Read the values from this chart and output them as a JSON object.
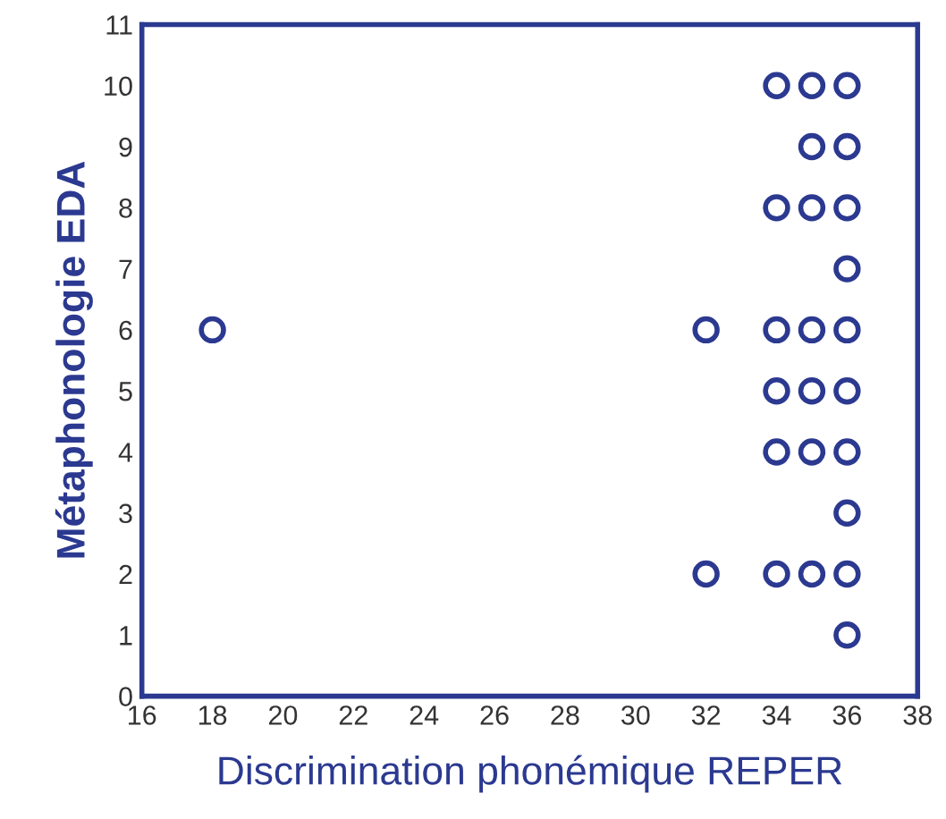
{
  "chart_data": {
    "type": "scatter",
    "xlabel": "Discrimination phonémique REPER",
    "ylabel": "Métaphonologie EDA",
    "series": [
      {
        "color": "#2b3990",
        "x": [
          18,
          32,
          32,
          34,
          34,
          34,
          34,
          34,
          34,
          35,
          35,
          35,
          35,
          35,
          35,
          35,
          36,
          36,
          36,
          36,
          36,
          36,
          36,
          36,
          36,
          36
        ],
        "values": [
          6,
          6,
          2,
          10,
          8,
          6,
          5,
          4,
          2,
          10,
          9,
          8,
          6,
          5,
          4,
          2,
          10,
          9,
          8,
          7,
          6,
          5,
          4,
          3,
          2,
          1
        ]
      }
    ],
    "xlim": [
      16,
      38
    ],
    "xticks": [
      16,
      18,
      20,
      22,
      24,
      26,
      28,
      30,
      32,
      34,
      36,
      38
    ],
    "ylim": [
      0,
      11
    ],
    "yticks": [
      0,
      1,
      2,
      3,
      4,
      5,
      6,
      7,
      8,
      9,
      10,
      11
    ],
    "grid": false,
    "legend": false,
    "marker": "circle"
  }
}
